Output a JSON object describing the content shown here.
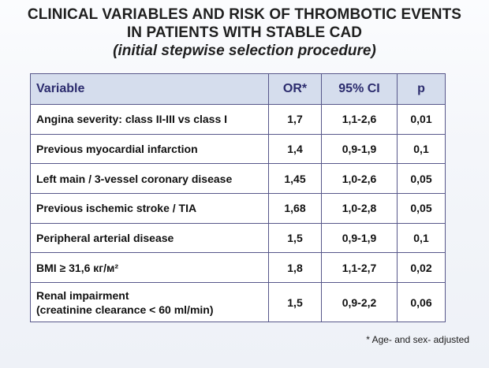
{
  "slide": {
    "title_line1": "CLINICAL VARIABLES AND RISK OF THROMBOTIC EVENTS",
    "title_line2": "IN PATIENTS WITH STABLE CAD",
    "subtitle": "(initial stepwise selection procedure)"
  },
  "table": {
    "headers": {
      "variable": "Variable",
      "or": "OR*",
      "ci": "95% CI",
      "p": "p"
    },
    "rows": [
      {
        "variable": "Angina severity: class II-III vs class I",
        "or": "1,7",
        "ci": "1,1-2,6",
        "p": "0,01"
      },
      {
        "variable": "Previous myocardial infarction",
        "or": "1,4",
        "ci": "0,9-1,9",
        "p": "0,1"
      },
      {
        "variable": "Left main / 3-vessel coronary disease",
        "or": "1,45",
        "ci": "1,0-2,6",
        "p": "0,05"
      },
      {
        "variable": "Previous ischemic stroke / TIA",
        "or": "1,68",
        "ci": "1,0-2,8",
        "p": "0,05"
      },
      {
        "variable": "Peripheral arterial disease",
        "or": "1,5",
        "ci": "0,9-1,9",
        "p": "0,1"
      },
      {
        "variable": "BMI  ≥ 31,6 кг/м²",
        "or": "1,8",
        "ci": "1,1-2,7",
        "p": "0,02"
      },
      {
        "variable": "Renal impairment",
        "variable_line2": "(creatinine clearance < 60 ml/min)",
        "or": "1,5",
        "ci": "0,9-2,2",
        "p": "0,06"
      }
    ]
  },
  "footnote": "* Age- and sex- adjusted"
}
